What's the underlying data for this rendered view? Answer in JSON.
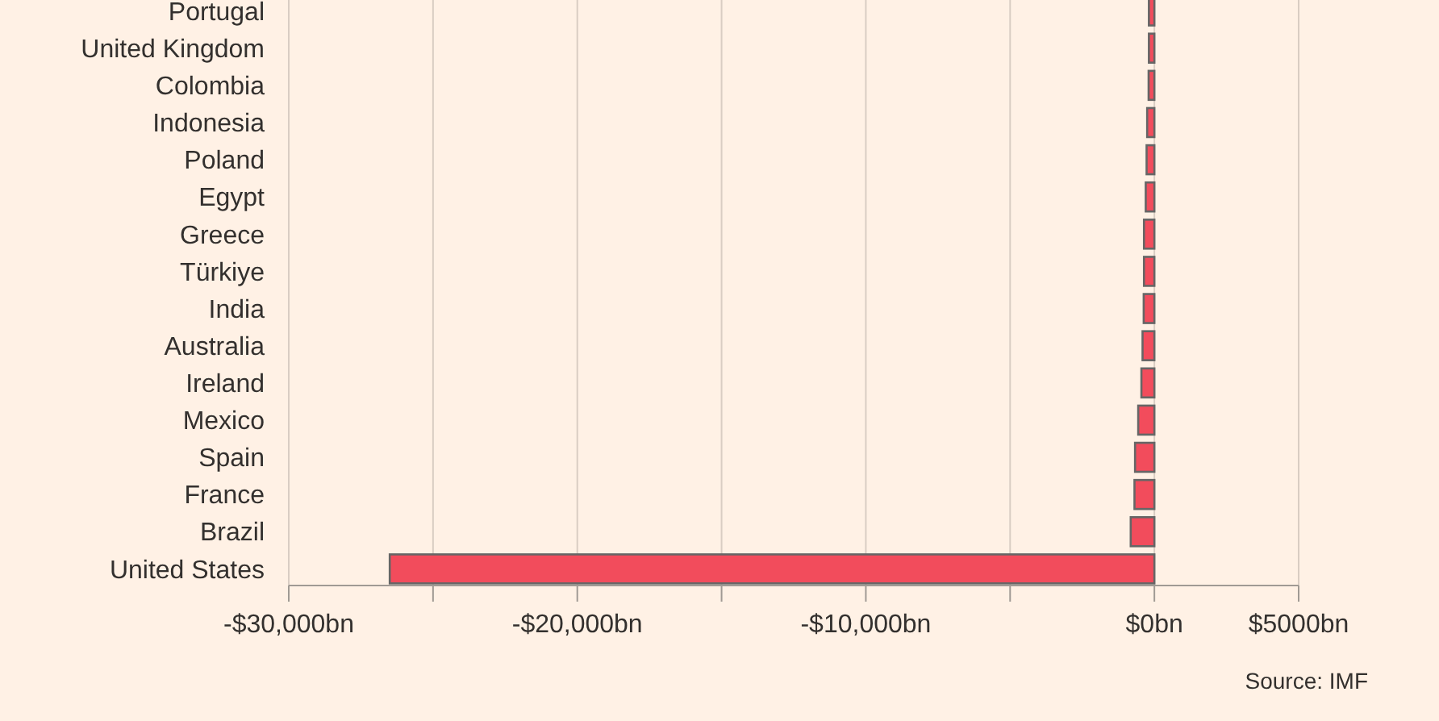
{
  "chart_data": {
    "type": "bar",
    "orientation": "horizontal",
    "categories": [
      "Portugal",
      "United Kingdom",
      "Colombia",
      "Indonesia",
      "Poland",
      "Egypt",
      "Greece",
      "Türkiye",
      "India",
      "Australia",
      "Ireland",
      "Mexico",
      "Spain",
      "France",
      "Brazil",
      "United States"
    ],
    "values": [
      -190,
      -190,
      -200,
      -250,
      -270,
      -300,
      -360,
      -360,
      -370,
      -410,
      -450,
      -560,
      -670,
      -690,
      -820,
      -26500
    ],
    "color": "#f24c5c",
    "xlim": [
      -30000,
      5000
    ],
    "xticks": [
      {
        "value": -30000,
        "label": "-$30,000bn"
      },
      {
        "value": -25000,
        "label": null
      },
      {
        "value": -20000,
        "label": "-$20,000bn"
      },
      {
        "value": -15000,
        "label": null
      },
      {
        "value": -10000,
        "label": "-$10,000bn"
      },
      {
        "value": -5000,
        "label": null
      },
      {
        "value": 0,
        "label": "$0bn"
      },
      {
        "value": 5000,
        "label": "$5000bn"
      }
    ],
    "grid": "x",
    "annotations": [
      "Source: IMF"
    ]
  }
}
